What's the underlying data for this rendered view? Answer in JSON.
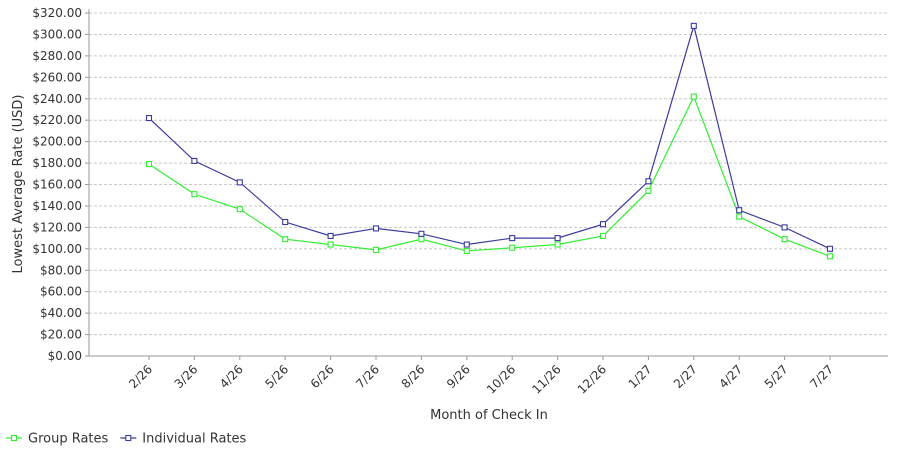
{
  "chart_data": {
    "type": "line",
    "title": "",
    "xlabel": "Month of Check In",
    "ylabel": "Lowest Average Rate (USD)",
    "ylim": [
      0,
      320
    ],
    "yticks": [
      0,
      20,
      40,
      60,
      80,
      100,
      120,
      140,
      160,
      180,
      200,
      220,
      240,
      260,
      280,
      300,
      320
    ],
    "ytick_labels": [
      "$0.00",
      "$20.00",
      "$40.00",
      "$60.00",
      "$80.00",
      "$100.00",
      "$120.00",
      "$140.00",
      "$160.00",
      "$180.00",
      "$200.00",
      "$220.00",
      "$240.00",
      "$260.00",
      "$280.00",
      "$300.00",
      "$320.00"
    ],
    "categories": [
      "2/26",
      "3/26",
      "4/26",
      "5/26",
      "6/26",
      "7/26",
      "8/26",
      "9/26",
      "10/26",
      "11/26",
      "12/26",
      "1/27",
      "2/27",
      "4/27",
      "5/27",
      "7/27"
    ],
    "grid": true,
    "legend_position": "bottom-left",
    "series": [
      {
        "name": "Group Rates",
        "color": "#33ee33",
        "values": [
          179,
          151,
          137,
          109,
          104,
          99,
          109,
          98,
          101,
          104,
          112,
          154,
          242,
          130,
          109,
          93
        ]
      },
      {
        "name": "Individual Rates",
        "color": "#3b3b9e",
        "values": [
          222,
          182,
          162,
          125,
          112,
          119,
          114,
          104,
          110,
          110,
          123,
          163,
          308,
          136,
          120,
          100
        ]
      }
    ]
  }
}
